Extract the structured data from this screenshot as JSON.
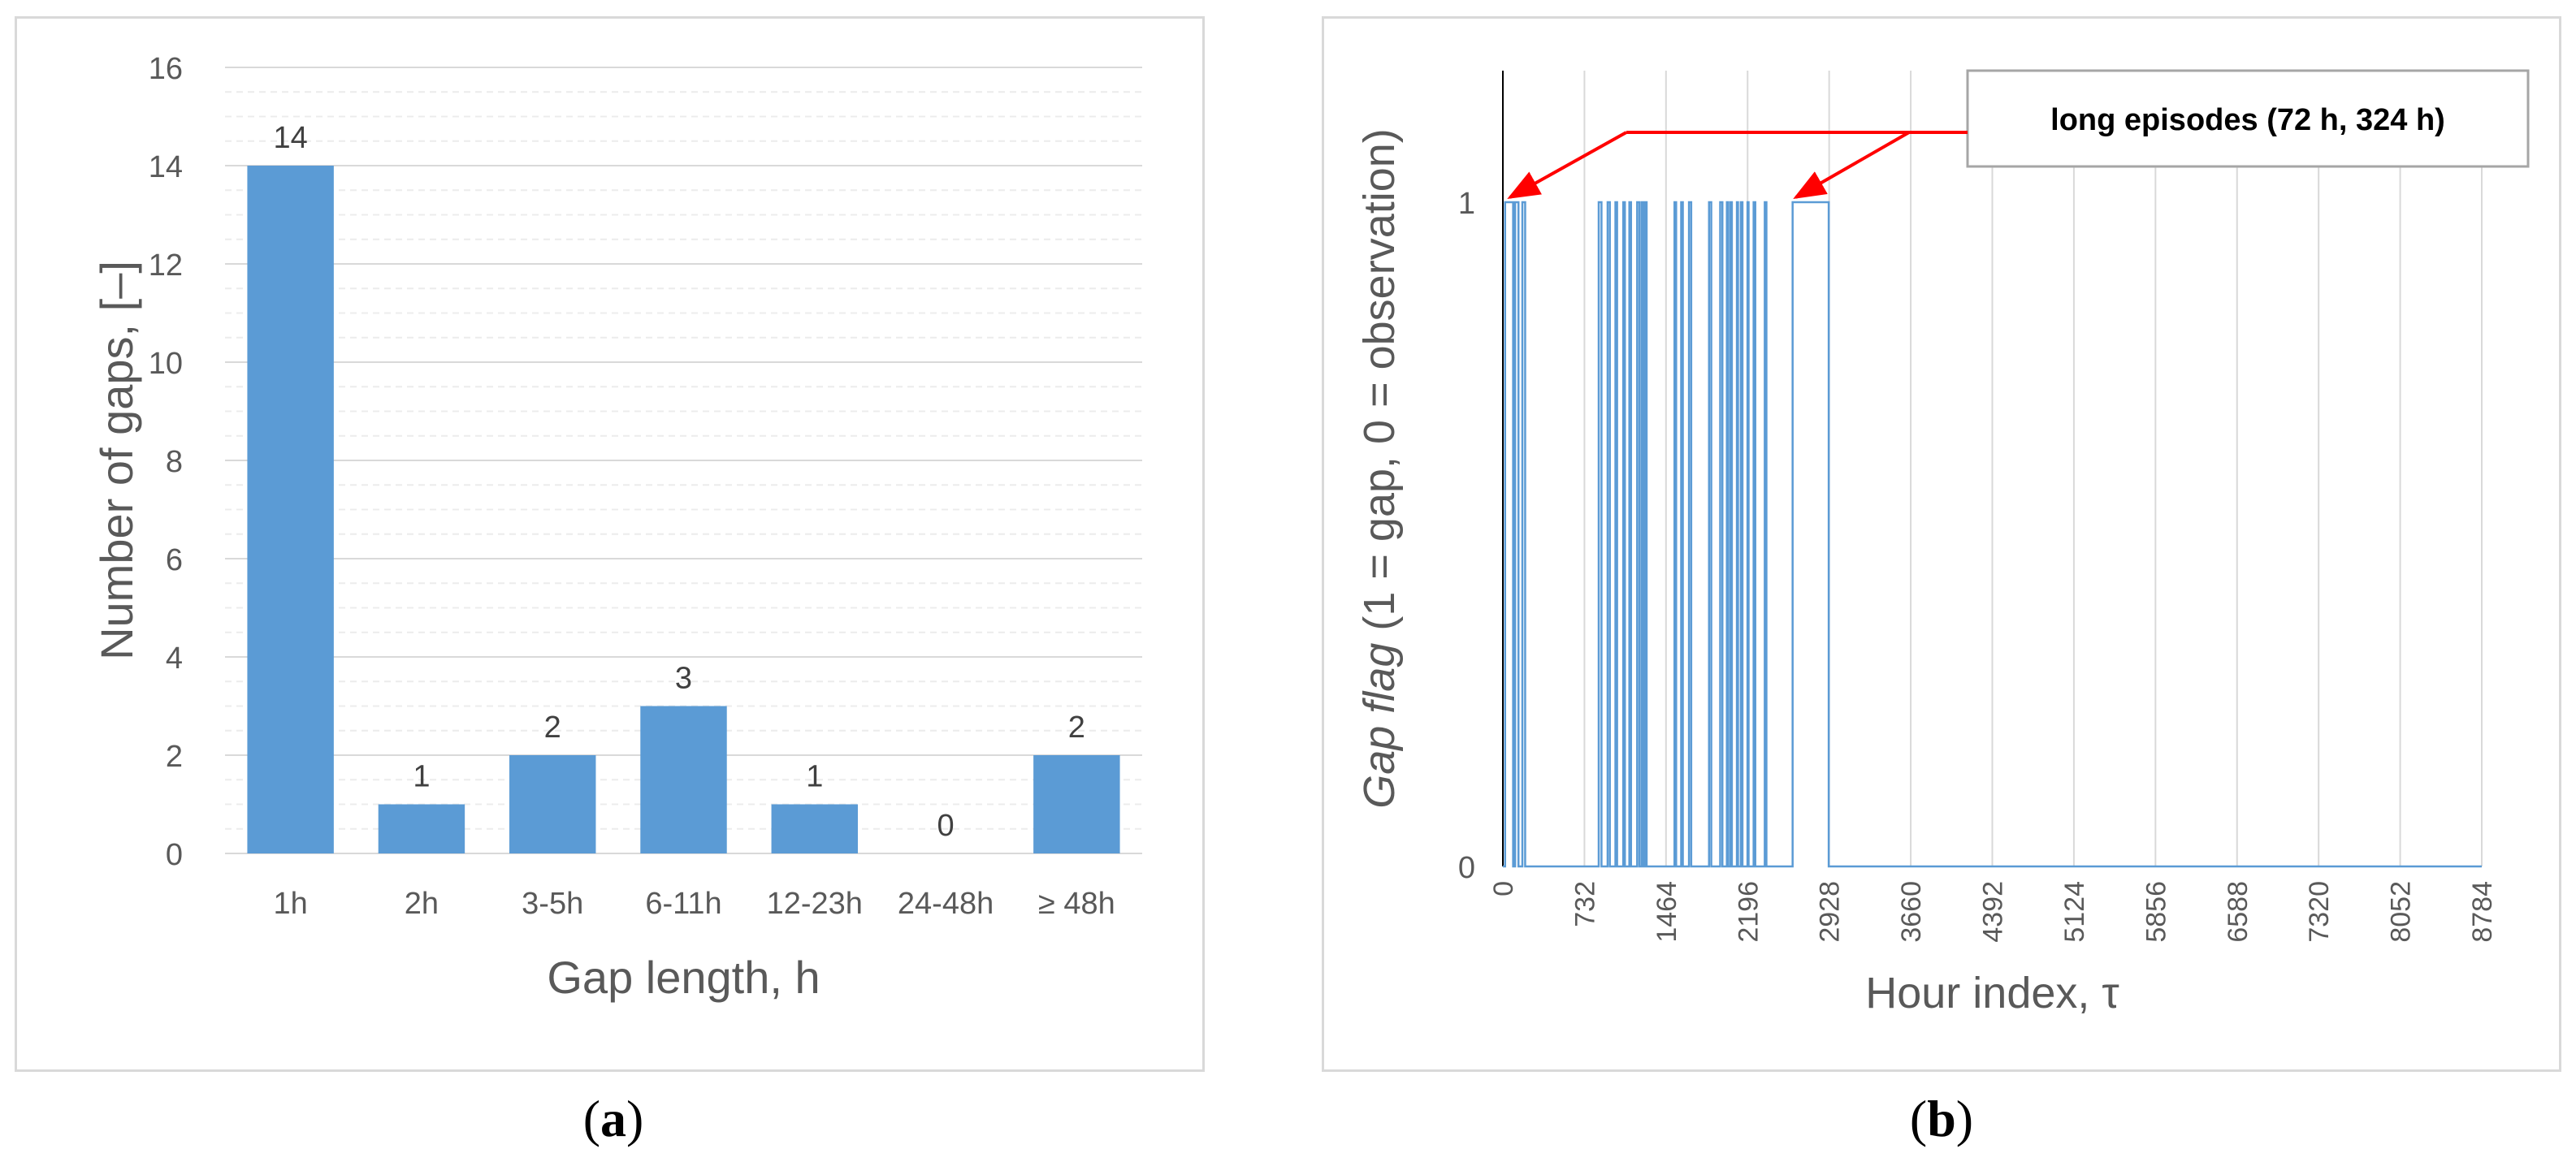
{
  "chart_data": [
    {
      "type": "bar",
      "panel": "a",
      "title": "",
      "xlabel": "Gap length, h",
      "ylabel": "Number of gaps, [–]",
      "categories": [
        "1h",
        "2h",
        "3-5h",
        "6-11h",
        "12-23h",
        "24-48h",
        "≥ 48h"
      ],
      "values": [
        14,
        1,
        2,
        3,
        1,
        0,
        2
      ],
      "data_labels": [
        "14",
        "1",
        "2",
        "3",
        "1",
        "0",
        "2"
      ],
      "ylim": [
        0,
        16
      ],
      "yticks": [
        "0",
        "2",
        "4",
        "6",
        "8",
        "10",
        "12",
        "14",
        "16"
      ],
      "grid": "major and minor horizontal",
      "legend": "none",
      "bar_color": "#5b9bd5"
    },
    {
      "type": "line",
      "panel": "b",
      "title": "",
      "xlabel": "Hour index, τ",
      "ylabel_italic": "Gap flag",
      "ylabel_rest": " (1 = gap, 0 = observation)",
      "xlim": [
        0,
        8784
      ],
      "xticks": [
        "0",
        "732",
        "1464",
        "2196",
        "2928",
        "3660",
        "4392",
        "5124",
        "5856",
        "6588",
        "7320",
        "8052",
        "8784"
      ],
      "ylim": [
        0,
        1
      ],
      "yticks": [
        "0",
        "1"
      ],
      "grid": "vertical",
      "legend": "none",
      "series_color": "#5b9bd5",
      "gap_intervals": [
        [
          20,
          92
        ],
        [
          110,
          140
        ],
        [
          175,
          200
        ],
        [
          860,
          885
        ],
        [
          940,
          960
        ],
        [
          1010,
          1025
        ],
        [
          1080,
          1095
        ],
        [
          1135,
          1150
        ],
        [
          1205,
          1225
        ],
        [
          1245,
          1260
        ],
        [
          1275,
          1290
        ],
        [
          1540,
          1555
        ],
        [
          1600,
          1615
        ],
        [
          1670,
          1690
        ],
        [
          1850,
          1870
        ],
        [
          1950,
          1970
        ],
        [
          2010,
          2020
        ],
        [
          2040,
          2055
        ],
        [
          2100,
          2110
        ],
        [
          2135,
          2150
        ],
        [
          2195,
          2205
        ],
        [
          2250,
          2265
        ],
        [
          2350,
          2365
        ],
        [
          2600,
          2924
        ]
      ],
      "annotation": {
        "text": "long episodes (72 h, 324 h)",
        "arrow_color": "#ff0000"
      }
    }
  ],
  "captions": {
    "a_open": "(",
    "a_letter": "a",
    "a_close": ")",
    "b_open": "(",
    "b_letter": "b",
    "b_close": ")"
  }
}
